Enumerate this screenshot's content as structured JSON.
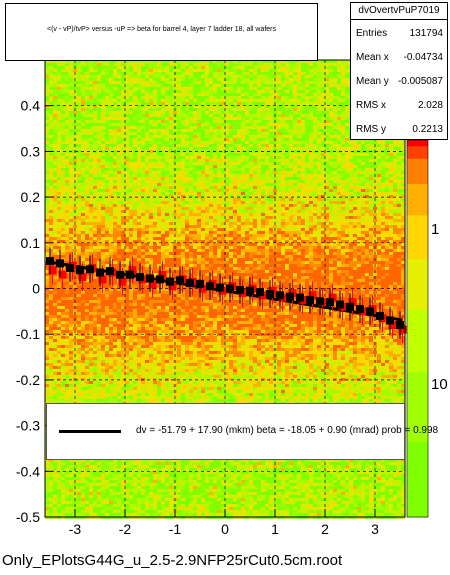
{
  "title": "<(v - vP)/tvP> versus -uP => beta for barrel 4, layer 7 ladder 18, all wafers",
  "stats": {
    "name": "dvOvertvPuP7019",
    "rows": [
      {
        "key": "Entries",
        "value": "131794"
      },
      {
        "key": "Mean x",
        "value": "-0.04734"
      },
      {
        "key": "Mean y",
        "value": "-0.005087"
      },
      {
        "key": "RMS x",
        "value": "2.028"
      },
      {
        "key": "RMS y",
        "value": "0.2213"
      }
    ]
  },
  "fit_legend": "dv =  -51.79 +  17.90 (mkm) beta =  -18.05 +  0.90 (mrad) prob = 0.998",
  "footer": "Only_EPlotsG44G_u_2.5-2.9NFP25rCut0.5cm.root",
  "colors": {
    "heat_low": "#7fff00",
    "heat_mid": "#ffd700",
    "heat_high": "#ff0000",
    "profile_red": "#ff0000",
    "profile_black": "#000000",
    "fit_line": "#000000"
  },
  "chart_data": {
    "type": "heatmap",
    "xlim": [
      -3.6,
      3.6
    ],
    "ylim": [
      -0.5,
      0.5
    ],
    "x_ticks": [
      -3,
      -2,
      -1,
      0,
      1,
      2,
      3
    ],
    "y_ticks": [
      -0.5,
      -0.4,
      -0.3,
      -0.2,
      -0.1,
      0,
      0.1,
      0.2,
      0.3,
      0.4
    ],
    "x_tick_labels": [
      "-3",
      "-2",
      "-1",
      "0",
      "1",
      "2",
      "3"
    ],
    "y_tick_labels": [
      "-0.5",
      "-0.4",
      "-0.3",
      "-0.2",
      "-0.1",
      "0",
      "0.1",
      "0.2",
      "0.3",
      "0.4"
    ],
    "colorbar_ticks": [
      {
        "label": "1",
        "value": 1
      },
      {
        "label": "10",
        "value": 10
      }
    ],
    "grid": true,
    "fit": {
      "intercept": -0.0052,
      "slope": -0.01805
    },
    "profile_black": {
      "x": [
        -3.5,
        -3.3,
        -3.1,
        -2.9,
        -2.7,
        -2.5,
        -2.3,
        -2.1,
        -1.9,
        -1.7,
        -1.5,
        -1.3,
        -1.1,
        -0.9,
        -0.7,
        -0.5,
        -0.3,
        -0.1,
        0.1,
        0.3,
        0.5,
        0.7,
        0.9,
        1.1,
        1.3,
        1.5,
        1.7,
        1.9,
        2.1,
        2.3,
        2.5,
        2.7,
        2.9,
        3.1,
        3.3,
        3.5
      ],
      "y": [
        0.06,
        0.055,
        0.045,
        0.04,
        0.042,
        0.035,
        0.038,
        0.03,
        0.03,
        0.025,
        0.022,
        0.02,
        0.015,
        0.018,
        0.012,
        0.01,
        0.005,
        0.002,
        0.0,
        -0.003,
        -0.005,
        -0.008,
        -0.012,
        -0.015,
        -0.018,
        -0.02,
        -0.025,
        -0.028,
        -0.03,
        -0.035,
        -0.04,
        -0.045,
        -0.05,
        -0.06,
        -0.07,
        -0.08
      ]
    },
    "profile_red": {
      "x": [
        -3.45,
        -3.25,
        -3.05,
        -2.85,
        -2.65,
        -2.45,
        -2.25,
        -2.05,
        -1.85,
        -1.65,
        -1.45,
        -1.25,
        -1.05,
        -0.85,
        -0.65,
        -0.45,
        -0.25,
        -0.05,
        0.15,
        0.35,
        0.55,
        0.75,
        0.95,
        1.15,
        1.35,
        1.55,
        1.75,
        1.95,
        2.15,
        2.35,
        2.55,
        2.75,
        2.95,
        3.15,
        3.35,
        3.55
      ],
      "y": [
        0.04,
        0.03,
        0.05,
        0.025,
        0.045,
        0.02,
        0.035,
        0.015,
        0.04,
        0.02,
        0.01,
        0.03,
        0.005,
        0.02,
        0.015,
        0.0,
        0.01,
        -0.005,
        0.005,
        -0.01,
        0.0,
        -0.015,
        -0.005,
        -0.02,
        -0.01,
        -0.025,
        -0.015,
        -0.03,
        -0.02,
        -0.04,
        -0.03,
        -0.05,
        -0.045,
        -0.065,
        -0.08,
        -0.09
      ]
    }
  }
}
